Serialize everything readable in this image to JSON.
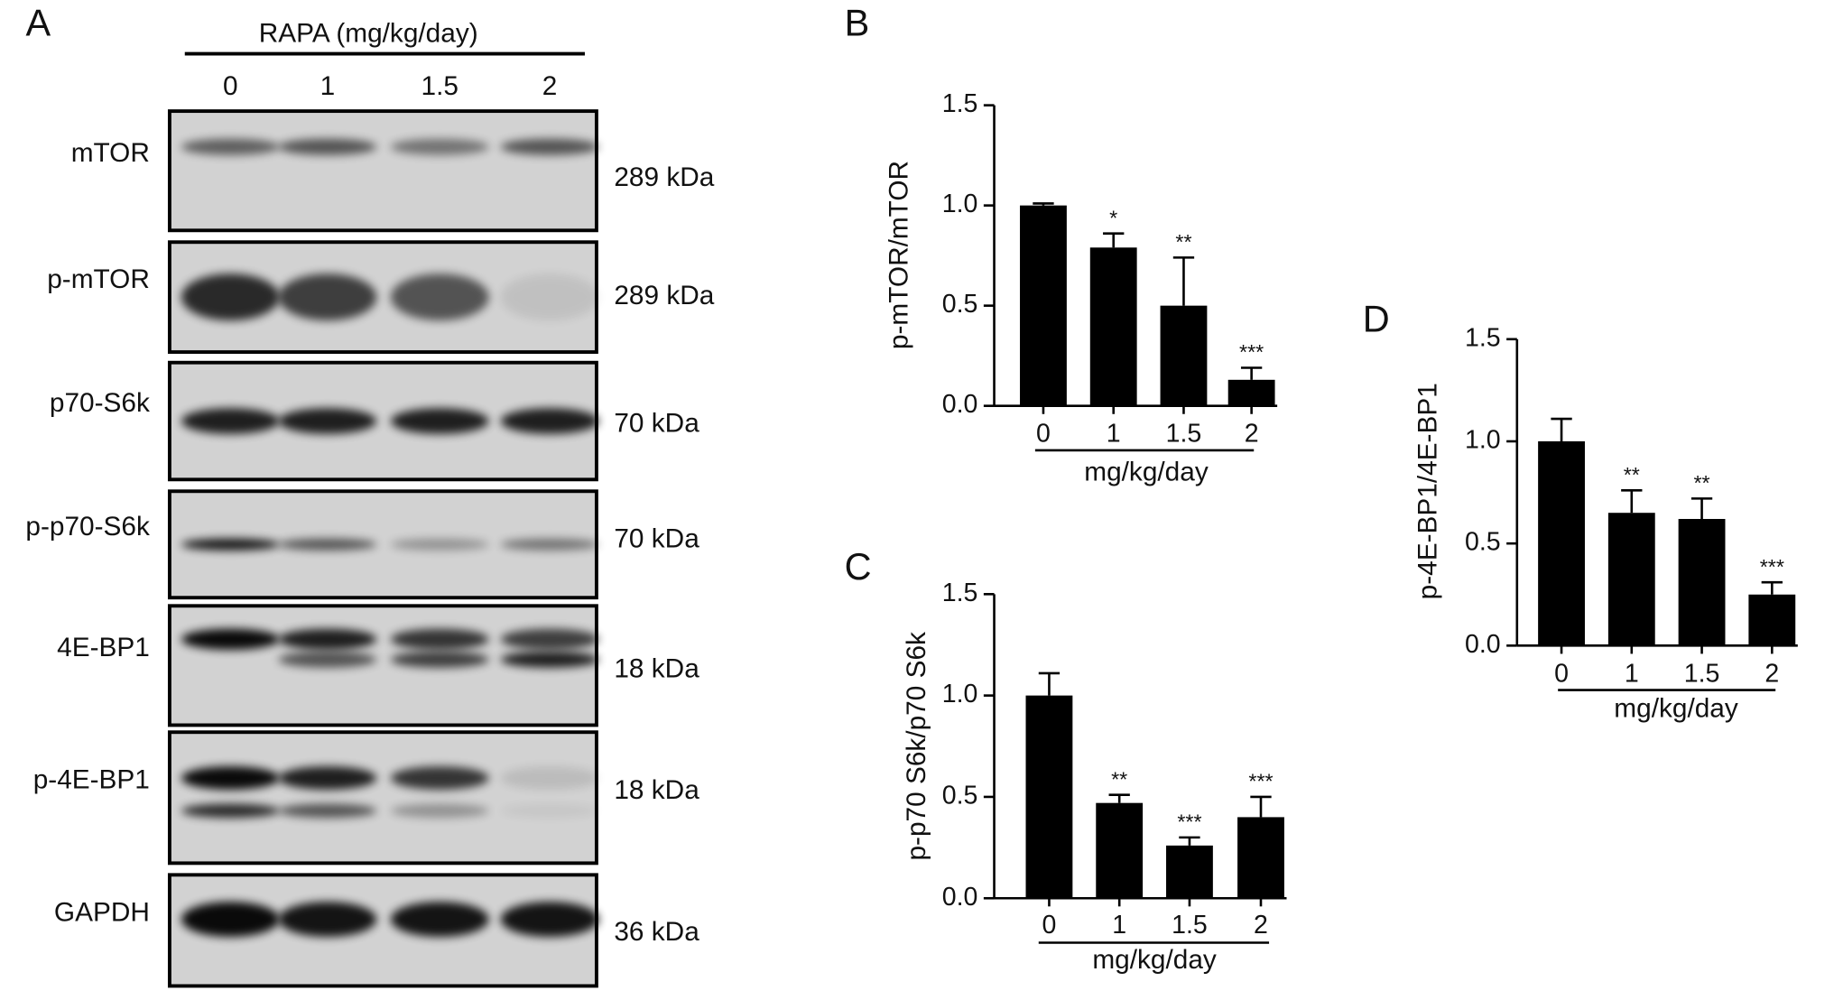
{
  "blot": {
    "panel": "A",
    "header": "RAPA (mg/kg/day)",
    "lanes": [
      "0",
      "1",
      "1.5",
      "2"
    ],
    "rows": [
      {
        "label": "mTOR",
        "size": "289 kDa"
      },
      {
        "label": "p-mTOR",
        "size": "289 kDa"
      },
      {
        "label": "p70-S6k",
        "size": "70 kDa"
      },
      {
        "label": "p-p70-S6k",
        "size": "70 kDa"
      },
      {
        "label": "4E-BP1",
        "size": "18 kDa"
      },
      {
        "label": "p-4E-BP1",
        "size": "18 kDa"
      },
      {
        "label": "GAPDH",
        "size": "36 kDa"
      }
    ]
  },
  "chart_data": [
    {
      "type": "bar",
      "panel": "B",
      "ylabel": "p-mTOR/mTOR",
      "xlabel": "mg/kg/day",
      "categories": [
        "0",
        "1",
        "1.5",
        "2"
      ],
      "values": [
        1.0,
        0.79,
        0.5,
        0.13
      ],
      "errors": [
        0.01,
        0.07,
        0.24,
        0.06
      ],
      "significance": [
        null,
        "*",
        "**",
        "***"
      ],
      "color": "#000000",
      "ylim": [
        0,
        1.5
      ],
      "yticks": [
        {
          "value": 0,
          "label": "0.0"
        },
        {
          "value": 0.5,
          "label": "0.5"
        },
        {
          "value": 1,
          "label": "1.0"
        },
        {
          "value": 1.5,
          "label": "1.5"
        }
      ]
    },
    {
      "type": "bar",
      "panel": "C",
      "ylabel": "p-p70 S6k/p70 S6k",
      "xlabel": "mg/kg/day",
      "categories": [
        "0",
        "1",
        "1.5",
        "2"
      ],
      "values": [
        1.0,
        0.47,
        0.26,
        0.4
      ],
      "errors": [
        0.11,
        0.04,
        0.04,
        0.1
      ],
      "significance": [
        null,
        "**",
        "***",
        "***"
      ],
      "color": "#000000",
      "ylim": [
        0,
        1.5
      ],
      "yticks": [
        {
          "value": 0,
          "label": "0.0"
        },
        {
          "value": 0.5,
          "label": "0.5"
        },
        {
          "value": 1,
          "label": "1.0"
        },
        {
          "value": 1.5,
          "label": "1.5"
        }
      ]
    },
    {
      "type": "bar",
      "panel": "D",
      "ylabel": "p-4E-BP1/4E-BP1",
      "xlabel": "mg/kg/day",
      "categories": [
        "0",
        "1",
        "1.5",
        "2"
      ],
      "values": [
        1.0,
        0.65,
        0.62,
        0.25
      ],
      "errors": [
        0.11,
        0.11,
        0.1,
        0.06
      ],
      "significance": [
        null,
        "**",
        "**",
        "***"
      ],
      "color": "#000000",
      "ylim": [
        0,
        1.5
      ],
      "yticks": [
        {
          "value": 0,
          "label": "0.0"
        },
        {
          "value": 0.5,
          "label": "0.5"
        },
        {
          "value": 1,
          "label": "1.0"
        },
        {
          "value": 1.5,
          "label": "1.5"
        }
      ]
    }
  ]
}
